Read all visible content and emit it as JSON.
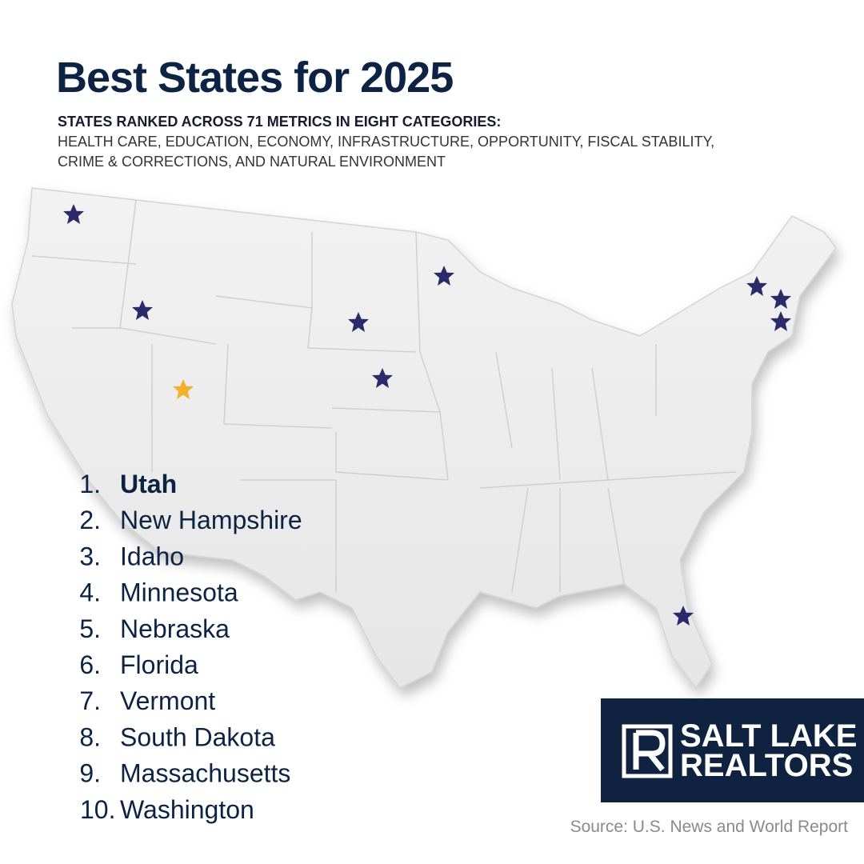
{
  "header": {
    "title": "Best States for 2025",
    "subtitle": "STATES RANKED ACROSS 71 METRICS IN EIGHT CATEGORIES:",
    "categories_line1": "HEALTH CARE, EDUCATION, ECONOMY, INFRASTRUCTURE, OPPORTUNITY, FISCAL STABILITY,",
    "categories_line2": "CRIME & CORRECTIONS, AND NATURAL ENVIRONMENT"
  },
  "rankings": [
    {
      "rank": "1.",
      "state": "Utah"
    },
    {
      "rank": "2.",
      "state": "New Hampshire"
    },
    {
      "rank": "3.",
      "state": "Idaho"
    },
    {
      "rank": "4.",
      "state": "Minnesota"
    },
    {
      "rank": "5.",
      "state": "Nebraska"
    },
    {
      "rank": "6.",
      "state": "Florida"
    },
    {
      "rank": "7.",
      "state": "Vermont"
    },
    {
      "rank": "8.",
      "state": "South Dakota"
    },
    {
      "rank": "9.",
      "state": "Massachusetts"
    },
    {
      "rank": "10.",
      "state": "Washington"
    }
  ],
  "logo": {
    "line1": "SALT LAKE",
    "line2": "REALTORS",
    "mark": "®"
  },
  "source": "Source: U.S. News and World Report"
}
